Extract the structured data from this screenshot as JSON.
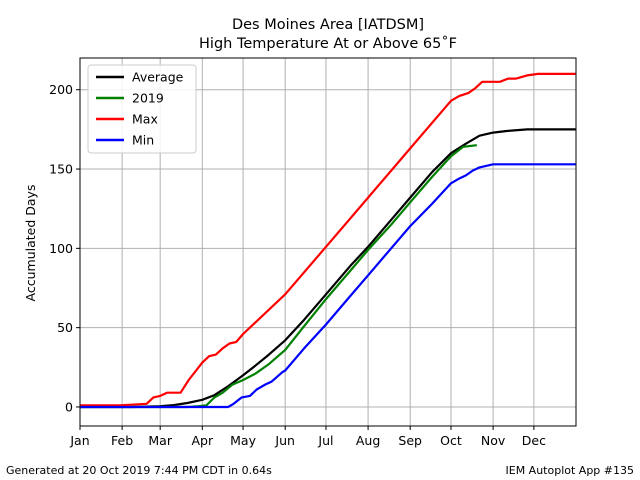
{
  "chart_data": {
    "type": "line",
    "title": "Des Moines Area [IATDSM]",
    "subtitle": "High Temperature At or Above 65˚F",
    "xlabel": "",
    "ylabel": "Accumulated Days",
    "x_ticks": [
      "Jan",
      "Feb",
      "Mar",
      "Apr",
      "May",
      "Jun",
      "Jul",
      "Aug",
      "Sep",
      "Oct",
      "Nov",
      "Dec"
    ],
    "x_tick_days": [
      1,
      32,
      60,
      91,
      121,
      152,
      182,
      213,
      244,
      274,
      305,
      335
    ],
    "xlim": [
      1,
      366
    ],
    "ylim": [
      -12,
      220
    ],
    "y_ticks": [
      0,
      50,
      100,
      150,
      200
    ],
    "grid": true,
    "legend": "upper left",
    "series": [
      {
        "name": "Average",
        "color": "#000000",
        "x": [
          1,
          40,
          60,
          70,
          80,
          91,
          100,
          110,
          121,
          130,
          140,
          152,
          166,
          182,
          200,
          213,
          230,
          244,
          260,
          274,
          285,
          295,
          305,
          315,
          330,
          366
        ],
        "y": [
          0,
          0,
          0.5,
          1.2,
          2.5,
          4.5,
          7.5,
          13,
          20,
          26,
          33,
          42,
          55,
          71,
          89,
          101,
          118,
          132,
          148,
          160,
          166,
          171,
          173,
          174,
          175,
          175
        ]
      },
      {
        "name": "2019",
        "color": "#008000",
        "x": [
          1,
          80,
          88,
          94,
          100,
          106,
          113,
          121,
          130,
          140,
          152,
          166,
          182,
          200,
          213,
          230,
          244,
          260,
          274,
          283,
          293
        ],
        "y": [
          0,
          0,
          0.5,
          1,
          6,
          9,
          14,
          17,
          21,
          27,
          36,
          51,
          68,
          86,
          99,
          115,
          129,
          145,
          158,
          164,
          165
        ]
      },
      {
        "name": "Max",
        "color": "#ff0000",
        "x": [
          1,
          30,
          50,
          55,
          60,
          65,
          75,
          81,
          91,
          96,
          101,
          106,
          111,
          116,
          121,
          152,
          182,
          213,
          244,
          274,
          280,
          287,
          292,
          297,
          310,
          316,
          322,
          330,
          338,
          366
        ],
        "y": [
          1,
          1,
          2,
          6,
          7,
          9,
          9,
          17,
          28,
          32,
          33,
          37,
          40,
          41,
          46,
          71,
          101,
          132,
          163,
          193,
          196,
          198,
          201,
          205,
          205,
          207,
          207,
          209,
          210,
          210
        ]
      },
      {
        "name": "Min",
        "color": "#0000ff",
        "x": [
          1,
          110,
          114,
          120,
          126,
          131,
          137,
          142,
          150,
          152,
          166,
          182,
          200,
          213,
          230,
          244,
          260,
          274,
          280,
          285,
          290,
          295,
          305,
          366
        ],
        "y": [
          0,
          0,
          2,
          6,
          7,
          11,
          14,
          16,
          22,
          23,
          37,
          52,
          70,
          83,
          100,
          114,
          128,
          141,
          144,
          146,
          149,
          151,
          153,
          153
        ]
      }
    ]
  },
  "footer": {
    "left": "Generated at 20 Oct 2019 7:44 PM CDT in 0.64s",
    "right": "IEM Autoplot App #135"
  }
}
